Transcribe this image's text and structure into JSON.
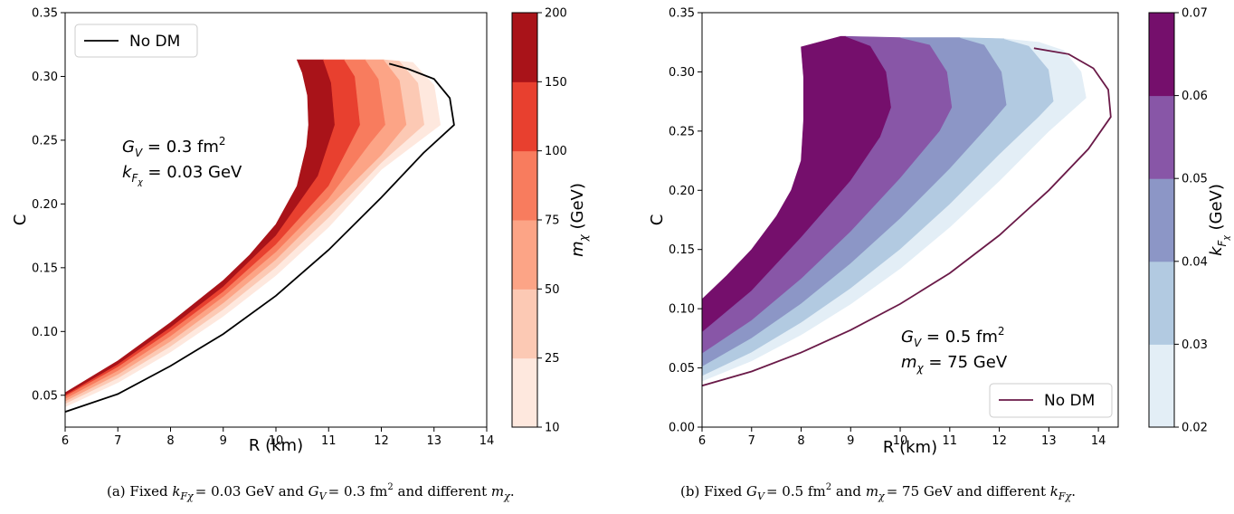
{
  "chart_data": [
    {
      "type": "area",
      "xlabel": "R  (km)",
      "ylabel": "C",
      "xlim": [
        6,
        14
      ],
      "ylim": [
        0.025,
        0.35
      ],
      "x_ticks": [
        "6",
        "7",
        "8",
        "9",
        "10",
        "11",
        "12",
        "13",
        "14"
      ],
      "x_tick_values": [
        6,
        7,
        8,
        9,
        10,
        11,
        12,
        13,
        14
      ],
      "y_ticks": [
        "0.05",
        "0.10",
        "0.15",
        "0.20",
        "0.25",
        "0.30",
        "0.35"
      ],
      "y_tick_values": [
        0.05,
        0.1,
        0.15,
        0.2,
        0.25,
        0.3,
        0.35
      ],
      "annotation_lines": [
        "G_V = 0.3 fm²",
        "k_Fχ = 0.03 GeV"
      ],
      "legend": {
        "label": "No DM",
        "color": "#000000",
        "location": "upper left"
      },
      "colorbar": {
        "label": "m_χ (GeV)",
        "ticks": [
          "10",
          "25",
          "50",
          "75",
          "100",
          "150",
          "200"
        ],
        "colors": [
          "#fee8de",
          "#fcc9b4",
          "#fca486",
          "#f87c5e",
          "#e8402f",
          "#a91319"
        ]
      },
      "bands": [
        {
          "color": "#a91319",
          "inner": [
            [
              6.0,
              0.05
            ],
            [
              7.0,
              0.074
            ],
            [
              8.0,
              0.103
            ],
            [
              9.0,
              0.135
            ],
            [
              10.0,
              0.175
            ],
            [
              10.8,
              0.222
            ],
            [
              11.12,
              0.262
            ],
            [
              11.05,
              0.295
            ],
            [
              10.9,
              0.313
            ]
          ]
        },
        {
          "color": "#e8402f",
          "inner": [
            [
              6.0,
              0.049
            ],
            [
              7.0,
              0.072
            ],
            [
              8.0,
              0.1
            ],
            [
              9.0,
              0.131
            ],
            [
              10.0,
              0.168
            ],
            [
              11.0,
              0.214
            ],
            [
              11.6,
              0.262
            ],
            [
              11.5,
              0.3
            ],
            [
              11.3,
              0.313
            ]
          ]
        },
        {
          "color": "#f87c5e",
          "inner": [
            [
              6.0,
              0.047
            ],
            [
              7.0,
              0.069
            ],
            [
              8.0,
              0.096
            ],
            [
              9.0,
              0.127
            ],
            [
              10.0,
              0.162
            ],
            [
              11.0,
              0.204
            ],
            [
              11.8,
              0.248
            ],
            [
              12.08,
              0.262
            ],
            [
              11.95,
              0.298
            ],
            [
              11.7,
              0.313
            ]
          ]
        },
        {
          "color": "#fca486",
          "inner": [
            [
              6.0,
              0.045
            ],
            [
              7.0,
              0.066
            ],
            [
              8.0,
              0.092
            ],
            [
              9.0,
              0.122
            ],
            [
              10.0,
              0.156
            ],
            [
              11.0,
              0.197
            ],
            [
              12.0,
              0.238
            ],
            [
              12.48,
              0.262
            ],
            [
              12.35,
              0.297
            ],
            [
              12.05,
              0.313
            ]
          ]
        },
        {
          "color": "#fcc9b4",
          "inner": [
            [
              6.0,
              0.043
            ],
            [
              7.0,
              0.063
            ],
            [
              8.0,
              0.088
            ],
            [
              9.0,
              0.117
            ],
            [
              10.0,
              0.15
            ],
            [
              11.0,
              0.189
            ],
            [
              12.0,
              0.232
            ],
            [
              12.82,
              0.262
            ],
            [
              12.7,
              0.295
            ],
            [
              12.35,
              0.312
            ]
          ]
        },
        {
          "color": "#fee8de",
          "inner": [
            [
              6.0,
              0.041
            ],
            [
              7.0,
              0.06
            ],
            [
              8.0,
              0.084
            ],
            [
              9.0,
              0.112
            ],
            [
              10.0,
              0.144
            ],
            [
              11.0,
              0.182
            ],
            [
              12.0,
              0.227
            ],
            [
              13.12,
              0.262
            ],
            [
              13.0,
              0.293
            ],
            [
              12.6,
              0.311
            ]
          ]
        }
      ],
      "outer_edge": [
        [
          6.0,
          0.052
        ],
        [
          7.0,
          0.077
        ],
        [
          8.0,
          0.107
        ],
        [
          9.0,
          0.14
        ],
        [
          9.5,
          0.16
        ],
        [
          10.0,
          0.184
        ],
        [
          10.4,
          0.214
        ],
        [
          10.58,
          0.245
        ],
        [
          10.62,
          0.262
        ],
        [
          10.6,
          0.285
        ],
        [
          10.5,
          0.303
        ],
        [
          10.4,
          0.313
        ]
      ],
      "series": [
        {
          "name": "No DM",
          "x": [
            6.0,
            7.0,
            8.0,
            9.0,
            10.0,
            11.0,
            12.0,
            12.8,
            13.38,
            13.3,
            13.0,
            12.5,
            12.15
          ],
          "y": [
            0.037,
            0.051,
            0.073,
            0.098,
            0.128,
            0.164,
            0.205,
            0.24,
            0.262,
            0.283,
            0.298,
            0.306,
            0.31
          ]
        }
      ],
      "caption": "(a) Fixed k_Fχ = 0.03 GeV and G_V = 0.3 fm² and different m_χ."
    },
    {
      "type": "area",
      "xlabel": "R  (km)",
      "ylabel": "C",
      "xlim": [
        6,
        14.4
      ],
      "ylim": [
        0.0,
        0.35
      ],
      "x_ticks": [
        "6",
        "7",
        "8",
        "9",
        "10",
        "11",
        "12",
        "13",
        "14"
      ],
      "x_tick_values": [
        6,
        7,
        8,
        9,
        10,
        11,
        12,
        13,
        14
      ],
      "y_ticks": [
        "0.00",
        "0.05",
        "0.10",
        "0.15",
        "0.20",
        "0.25",
        "0.30",
        "0.35"
      ],
      "y_tick_values": [
        0.0,
        0.05,
        0.1,
        0.15,
        0.2,
        0.25,
        0.3,
        0.35
      ],
      "annotation_lines": [
        "G_V = 0.5 fm²",
        "m_χ = 75 GeV"
      ],
      "legend": {
        "label": "No DM",
        "color": "#6a1a48",
        "location": "lower right"
      },
      "colorbar": {
        "label": "k_Fχ (GeV)",
        "ticks": [
          "0.02",
          "0.03",
          "0.04",
          "0.05",
          "0.06",
          "0.07"
        ],
        "colors": [
          "#e3eef6",
          "#b2cae1",
          "#8c96c6",
          "#8856a7",
          "#750f6c"
        ]
      },
      "bands": [
        {
          "color": "#750f6c",
          "inner": [
            [
              6.0,
              0.08
            ],
            [
              7.0,
              0.115
            ],
            [
              8.0,
              0.16
            ],
            [
              9.0,
              0.208
            ],
            [
              9.6,
              0.245
            ],
            [
              9.82,
              0.27
            ],
            [
              9.72,
              0.3
            ],
            [
              9.4,
              0.322
            ],
            [
              8.9,
              0.33
            ]
          ]
        },
        {
          "color": "#8856a7",
          "inner": [
            [
              6.0,
              0.062
            ],
            [
              7.0,
              0.09
            ],
            [
              8.0,
              0.125
            ],
            [
              9.0,
              0.165
            ],
            [
              10.0,
              0.21
            ],
            [
              10.8,
              0.25
            ],
            [
              11.05,
              0.27
            ],
            [
              10.95,
              0.3
            ],
            [
              10.6,
              0.323
            ],
            [
              10.0,
              0.329
            ]
          ]
        },
        {
          "color": "#8c96c6",
          "inner": [
            [
              6.0,
              0.051
            ],
            [
              7.0,
              0.075
            ],
            [
              8.0,
              0.104
            ],
            [
              9.0,
              0.138
            ],
            [
              10.0,
              0.176
            ],
            [
              11.0,
              0.218
            ],
            [
              11.8,
              0.255
            ],
            [
              12.15,
              0.272
            ],
            [
              12.05,
              0.3
            ],
            [
              11.7,
              0.323
            ],
            [
              11.2,
              0.329
            ]
          ]
        },
        {
          "color": "#b2cae1",
          "inner": [
            [
              6.0,
              0.043
            ],
            [
              7.0,
              0.063
            ],
            [
              8.0,
              0.088
            ],
            [
              9.0,
              0.117
            ],
            [
              10.0,
              0.15
            ],
            [
              11.0,
              0.188
            ],
            [
              12.0,
              0.23
            ],
            [
              12.8,
              0.262
            ],
            [
              13.1,
              0.275
            ],
            [
              13.0,
              0.302
            ],
            [
              12.6,
              0.322
            ],
            [
              12.1,
              0.328
            ]
          ]
        },
        {
          "color": "#e3eef6",
          "inner": [
            [
              6.0,
              0.039
            ],
            [
              7.0,
              0.056
            ],
            [
              8.0,
              0.078
            ],
            [
              9.0,
              0.104
            ],
            [
              10.0,
              0.134
            ],
            [
              11.0,
              0.169
            ],
            [
              12.0,
              0.208
            ],
            [
              13.0,
              0.25
            ],
            [
              13.75,
              0.278
            ],
            [
              13.65,
              0.3
            ],
            [
              13.3,
              0.318
            ],
            [
              12.8,
              0.325
            ]
          ]
        }
      ],
      "outer_edge": [
        [
          6.0,
          0.108
        ],
        [
          6.5,
          0.128
        ],
        [
          7.0,
          0.15
        ],
        [
          7.5,
          0.178
        ],
        [
          7.8,
          0.2
        ],
        [
          8.0,
          0.225
        ],
        [
          8.05,
          0.26
        ],
        [
          8.05,
          0.295
        ],
        [
          8.0,
          0.321
        ],
        [
          8.8,
          0.33
        ]
      ],
      "series": [
        {
          "name": "No DM",
          "x": [
            6.0,
            7.0,
            8.0,
            9.0,
            10.0,
            11.0,
            12.0,
            13.0,
            13.8,
            14.25,
            14.2,
            13.9,
            13.4,
            12.7
          ],
          "y": [
            0.035,
            0.047,
            0.063,
            0.082,
            0.104,
            0.13,
            0.162,
            0.2,
            0.235,
            0.262,
            0.285,
            0.303,
            0.315,
            0.32
          ]
        }
      ],
      "caption": "(b) Fixed G_V = 0.5 fm² and m_χ = 75 GeV and different k_Fχ."
    }
  ],
  "panels": [
    {
      "colorbar_label_main": "m",
      "colorbar_label_sub": "χ",
      "colorbar_label_unit": " (GeV)",
      "annot1_main": "G",
      "annot1_sub": "V",
      "annot1_rest": " = 0.3 fm",
      "annot1_sup": "2",
      "annot2_main": "k",
      "annot2_sub": "F",
      "annot2_subsub": "χ",
      "annot2_rest": " = 0.03 GeV",
      "caption_a": "(a) Fixed ",
      "caption_b": "k",
      "caption_c": "Fχ",
      "caption_d": "= 0.03 GeV and ",
      "caption_e": "G",
      "caption_f": "V",
      "caption_g": "= 0.3 fm",
      "caption_h": "2",
      "caption_i": " and different ",
      "caption_j": "m",
      "caption_k": "χ",
      "caption_l": "."
    },
    {
      "colorbar_label_main": "k",
      "colorbar_label_sub": "F",
      "colorbar_label_subsub": "χ",
      "colorbar_label_unit": " (GeV)",
      "annot1_main": "G",
      "annot1_sub": "V",
      "annot1_rest": " = 0.5 fm",
      "annot1_sup": "2",
      "annot2_main": "m",
      "annot2_sub": "χ",
      "annot2_rest": " = 75 GeV",
      "caption_a": "(b) Fixed ",
      "caption_b": "G",
      "caption_c": "V",
      "caption_d": "= 0.5 fm",
      "caption_e": "2",
      "caption_f": " and ",
      "caption_g": "m",
      "caption_h": "χ",
      "caption_i": "= 75 GeV and different ",
      "caption_j": "k",
      "caption_k": "Fχ",
      "caption_l": "."
    }
  ]
}
